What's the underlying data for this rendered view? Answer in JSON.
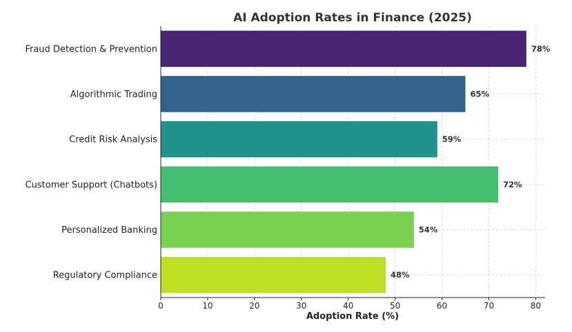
{
  "chart_data": {
    "type": "bar",
    "orientation": "horizontal",
    "title": "AI Adoption Rates in Finance (2025)",
    "xlabel": "Adoption Rate (%)",
    "ylabel": "",
    "categories": [
      "Fraud Detection & Prevention",
      "Algorithmic Trading",
      "Credit Risk Analysis",
      "Customer Support (Chatbots)",
      "Personalized Banking",
      "Regulatory Compliance"
    ],
    "values": [
      78,
      65,
      59,
      72,
      54,
      48
    ],
    "value_labels": [
      "78%",
      "65%",
      "59%",
      "72%",
      "54%",
      "48%"
    ],
    "colors": [
      "#482475",
      "#33638d",
      "#21918c",
      "#44bf70",
      "#7ad151",
      "#bddf26"
    ],
    "xlim": [
      0,
      82
    ],
    "xticks": [
      0,
      10,
      20,
      30,
      40,
      50,
      60,
      70,
      80
    ],
    "xtick_labels": [
      "0",
      "10",
      "20",
      "30",
      "40",
      "50",
      "60",
      "70",
      "80"
    ],
    "grid": true
  }
}
